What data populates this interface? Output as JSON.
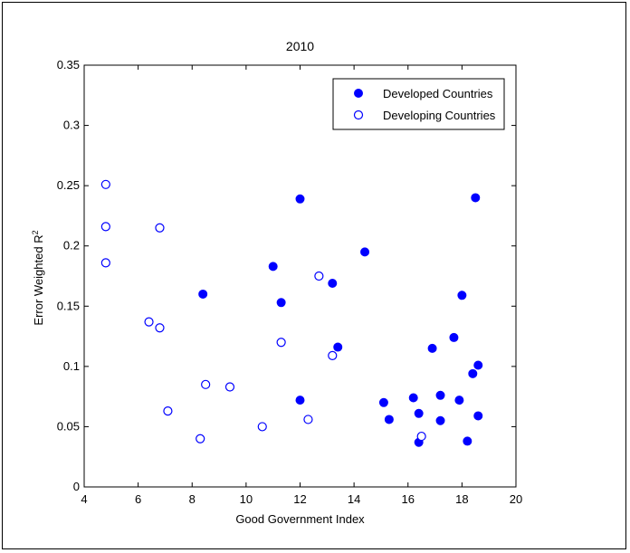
{
  "chart_data": {
    "type": "scatter",
    "title": "2010",
    "xlabel": "Good Government Index",
    "ylabel_main": "Error Weighted R",
    "ylabel_sup": "2",
    "xlim": [
      4,
      20
    ],
    "ylim": [
      0,
      0.35
    ],
    "x_ticks": [
      "4",
      "6",
      "8",
      "10",
      "12",
      "14",
      "16",
      "18",
      "20"
    ],
    "y_ticks": [
      "0",
      "0.05",
      "0.1",
      "0.15",
      "0.2",
      "0.25",
      "0.3",
      "0.35"
    ],
    "grid": false,
    "legend_position": "top-right",
    "colors": {
      "marker": "#0000ff"
    },
    "series": [
      {
        "name": "Developed Countries",
        "marker": "filled-circle",
        "points": [
          [
            8.4,
            0.16
          ],
          [
            11.0,
            0.183
          ],
          [
            11.3,
            0.153
          ],
          [
            12.0,
            0.239
          ],
          [
            12.0,
            0.072
          ],
          [
            13.2,
            0.169
          ],
          [
            13.4,
            0.116
          ],
          [
            14.4,
            0.195
          ],
          [
            15.1,
            0.07
          ],
          [
            15.3,
            0.056
          ],
          [
            16.2,
            0.074
          ],
          [
            16.4,
            0.061
          ],
          [
            16.4,
            0.037
          ],
          [
            16.9,
            0.115
          ],
          [
            17.2,
            0.076
          ],
          [
            17.2,
            0.055
          ],
          [
            17.7,
            0.124
          ],
          [
            17.9,
            0.072
          ],
          [
            18.0,
            0.159
          ],
          [
            18.2,
            0.038
          ],
          [
            18.4,
            0.094
          ],
          [
            18.5,
            0.24
          ],
          [
            18.6,
            0.101
          ],
          [
            18.6,
            0.059
          ]
        ]
      },
      {
        "name": "Developing Countries",
        "marker": "open-circle",
        "points": [
          [
            4.8,
            0.251
          ],
          [
            4.8,
            0.216
          ],
          [
            4.8,
            0.186
          ],
          [
            6.4,
            0.137
          ],
          [
            6.8,
            0.215
          ],
          [
            6.8,
            0.132
          ],
          [
            7.1,
            0.063
          ],
          [
            8.3,
            0.04
          ],
          [
            8.5,
            0.085
          ],
          [
            9.4,
            0.083
          ],
          [
            10.6,
            0.05
          ],
          [
            11.3,
            0.12
          ],
          [
            12.3,
            0.056
          ],
          [
            12.7,
            0.175
          ],
          [
            13.2,
            0.109
          ],
          [
            16.5,
            0.042
          ]
        ]
      }
    ]
  }
}
